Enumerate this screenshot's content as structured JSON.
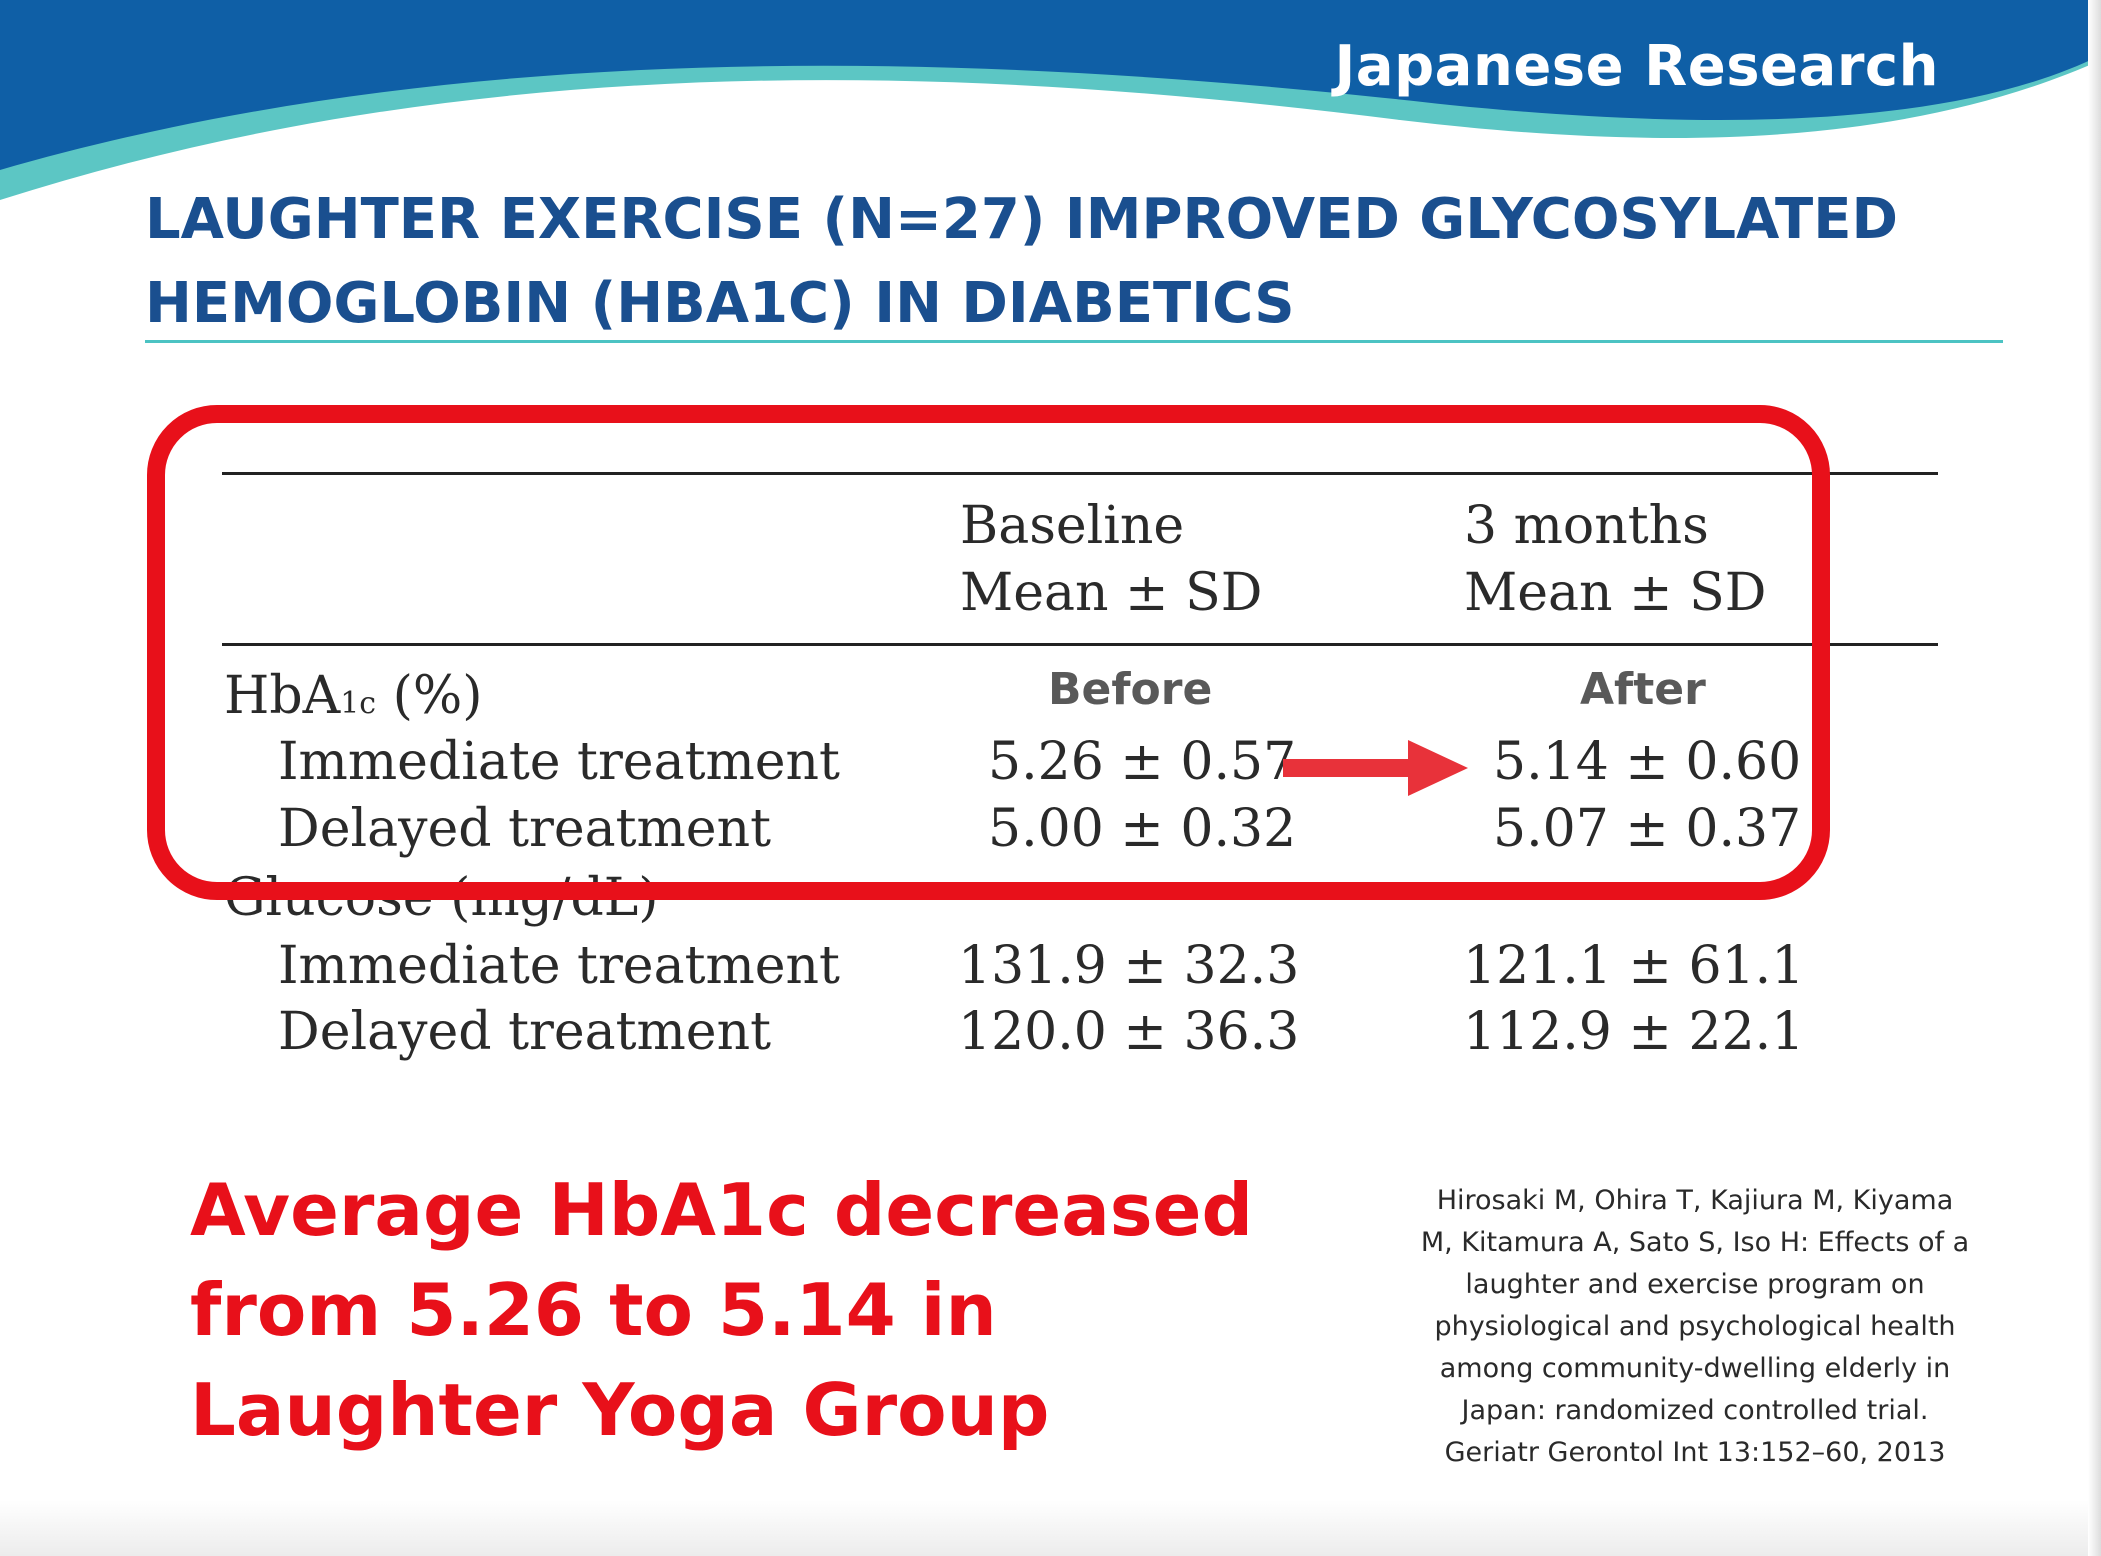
{
  "header": {
    "section_label": "Japanese Research",
    "colors": {
      "wave_dark": "#0f5fa6",
      "wave_light": "#5cc6c4",
      "title_blue": "#1a4f8f"
    }
  },
  "title": {
    "line1": "LAUGHTER EXERCISE (N=27) IMPROVED GLYCOSYLATED",
    "line2": "HEMOGLOBIN (HBA1C) IN DIABETICS"
  },
  "table": {
    "col_baseline": {
      "line1": "Baseline",
      "line2": "Mean ± SD"
    },
    "col_3months": {
      "line1": "3 months",
      "line2": "Mean ± SD"
    },
    "before_label": "Before",
    "after_label": "After",
    "hba1c_header": {
      "prefix": "HbA",
      "subscript": "1c",
      "suffix": " (%)"
    },
    "hba1c_rows": [
      {
        "label": "Immediate treatment",
        "baseline": "5.26 ± 0.57",
        "three_months": "5.14 ± 0.60"
      },
      {
        "label": "Delayed treatment",
        "baseline": "5.00 ± 0.32",
        "three_months": "5.07 ± 0.37"
      }
    ],
    "glucose_header": "Glucose (mg/dL)",
    "glucose_rows": [
      {
        "label": "Immediate treatment",
        "baseline": "131.9 ± 32.3",
        "three_months": "121.1 ± 61.1"
      },
      {
        "label": "Delayed treatment",
        "baseline": "120.0 ± 36.3",
        "three_months": "112.9 ± 22.1"
      }
    ]
  },
  "highlight_color": "#e8101a",
  "summary": {
    "line1": "Average HbA1c decreased",
    "line2": "from 5.26 to 5.14 in",
    "line3": "Laughter Yoga Group"
  },
  "citation": {
    "lines": [
      "Hirosaki M, Ohira T, Kajiura M, Kiyama",
      "M, Kitamura A, Sato S, Iso H: Effects of a",
      "laughter and exercise program on",
      "physiological and psychological health",
      "among community-dwelling elderly in",
      "Japan: randomized controlled trial.",
      "Geriatr Gerontol Int 13:152–60, 2013"
    ]
  }
}
